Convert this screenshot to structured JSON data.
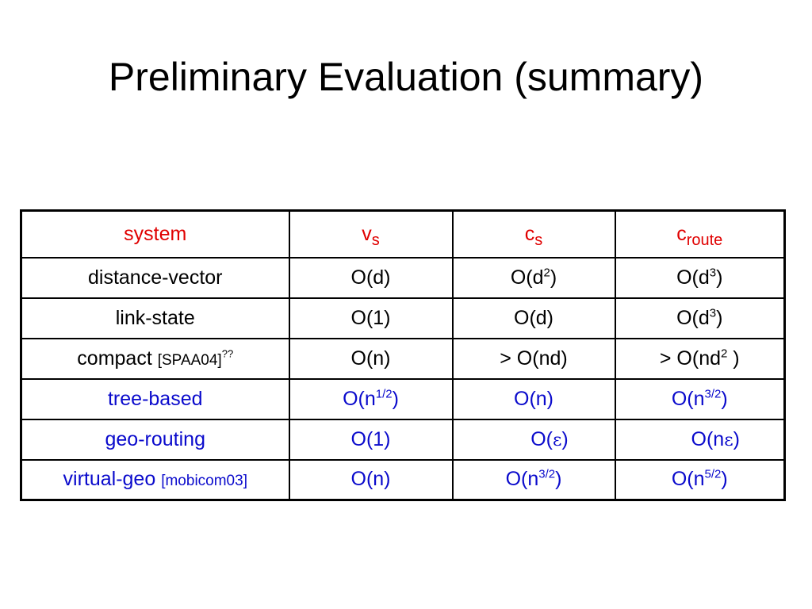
{
  "title": "Preliminary Evaluation (summary)",
  "header": {
    "system": "system",
    "vs_base": "v",
    "vs_sub": "s",
    "cs_base": "c",
    "cs_sub": "s",
    "croute_base": "c",
    "croute_sub": "route"
  },
  "rows": [
    {
      "system": "distance-vector",
      "vs": "O(d)",
      "cs_pre": "O(d",
      "cs_sup": "2",
      "cs_post": ")",
      "cr_pre": "O(d",
      "cr_sup": "3",
      "cr_post": ")"
    },
    {
      "system": "link-state",
      "vs": "O(1)",
      "cs": "O(d)",
      "cr_pre": "O(d",
      "cr_sup": "3",
      "cr_post": ")"
    },
    {
      "system": "compact",
      "ref": "[SPAA04]",
      "ref_sup": "??",
      "vs": "O(n)",
      "cs": "> O(nd)",
      "cr_pre": "> O(nd",
      "cr_sup": "2",
      "cr_post": " )"
    },
    {
      "system": "tree-based",
      "vs_pre": "O(n",
      "vs_sup": "1/2",
      "vs_post": ")",
      "cs": "O(n)",
      "cr_pre": "O(n",
      "cr_sup": "3/2",
      "cr_post": ")"
    },
    {
      "system": "geo-routing",
      "vs": "O(1)",
      "cs_pre": "O(",
      "cs_eps": "ε",
      "cs_post": ")",
      "cr_pre": "O(n",
      "cr_eps": "ε",
      "cr_post": ")"
    },
    {
      "system": "virtual-geo",
      "ref": "[mobicom03]",
      "vs": "O(n)",
      "cs_pre": "O(n",
      "cs_sup": "3/2",
      "cs_post": ")",
      "cr_pre": "O(n",
      "cr_sup": "5/2",
      "cr_post": ")"
    }
  ],
  "colors": {
    "header": "#e00000",
    "highlight_rows": "#0a0acc",
    "text": "#000000"
  }
}
